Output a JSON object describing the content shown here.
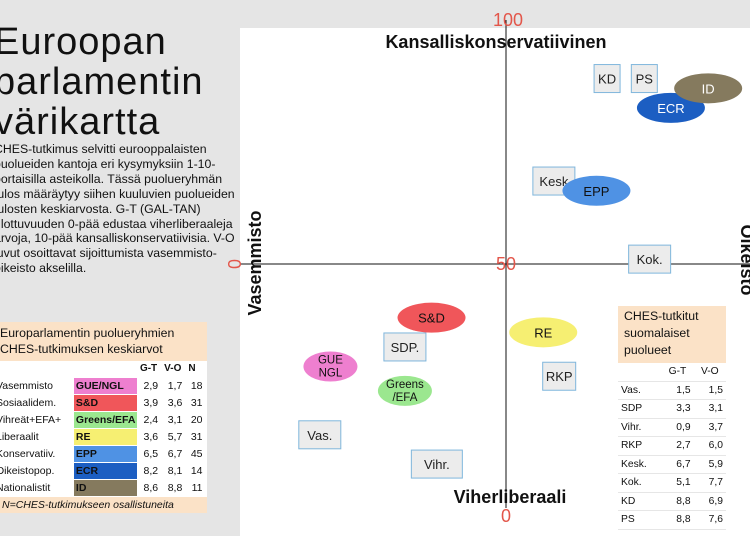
{
  "title": "Euroopan\nparlamentin\nvärikartta",
  "description": "CHES-tutkimus selvitti eurooppalaisten puolueiden kantoja eri kysymyksiin 1-10-portaisilla asteikolla. Tässä puolueryhmän tulos määräytyy siihen kuuluvien puolueiden tulosten keskiarvosta. G-T (GAL-TAN) ulottuvuuden 0-pää edustaa viherliberaaleja arvoja, 10-pää kansalliskonservatiivisia. V-O luvut osoittavat sijoittumista vasemmisto-oikeisto akselilla.",
  "eu_table": {
    "header": "Europarlamentin puolueryhmien CHES-tutkimuksen keskiarvot",
    "columns": [
      "",
      "",
      "G-T",
      "V-O",
      "N"
    ],
    "rows": [
      {
        "label": "Vasemmisto",
        "group": "GUE/NGL",
        "gt": "2,9",
        "vo": "1,7",
        "n": "18",
        "color": "#ee7fcf"
      },
      {
        "label": "Sosiaalidem.",
        "group": "S&D",
        "gt": "3,9",
        "vo": "3,6",
        "n": "31",
        "color": "#f0565a"
      },
      {
        "label": "Vihreät+EFA+",
        "group": "Greens/EFA",
        "gt": "2,4",
        "vo": "3,1",
        "n": "20",
        "color": "#9be78f"
      },
      {
        "label": "Liberaalit",
        "group": "RE",
        "gt": "3,6",
        "vo": "5,7",
        "n": "31",
        "color": "#f6ef72"
      },
      {
        "label": "Konservatiiv.",
        "group": "EPP",
        "gt": "6,5",
        "vo": "6,7",
        "n": "45",
        "color": "#4f92e4"
      },
      {
        "label": "Oikeistopop.",
        "group": "ECR",
        "gt": "8,2",
        "vo": "8,1",
        "n": "14",
        "color": "#1c5ec2"
      },
      {
        "label": "Nationalistit",
        "group": "ID",
        "gt": "8,6",
        "vo": "8,8",
        "n": "11",
        "color": "#857a5e"
      }
    ],
    "footnote": "N=CHES-tutkimukseen osallistuneita"
  },
  "fi_table": {
    "header": "CHES-tutkitut suomalaiset puolueet",
    "columns": [
      "",
      "G-T",
      "V-O"
    ],
    "rows": [
      {
        "party": "Vas.",
        "gt": "1,5",
        "vo": "1,5"
      },
      {
        "party": "SDP",
        "gt": "3,3",
        "vo": "3,1"
      },
      {
        "party": "Vihr.",
        "gt": "0,9",
        "vo": "3,7"
      },
      {
        "party": "RKP",
        "gt": "2,7",
        "vo": "6,0"
      },
      {
        "party": "Kesk.",
        "gt": "6,7",
        "vo": "5,9"
      },
      {
        "party": "Kok.",
        "gt": "5,1",
        "vo": "7,7"
      },
      {
        "party": "KD",
        "gt": "8,8",
        "vo": "6,9"
      },
      {
        "party": "PS",
        "gt": "8,8",
        "vo": "7,6"
      }
    ]
  },
  "chart_data": {
    "type": "scatter",
    "axis_labels": {
      "top": "Kansalliskonservatiivinen",
      "bottom": "Viherliberaali",
      "left": "Vasemmisto",
      "right": "Oikeisto"
    },
    "tick_labels": {
      "top": "100",
      "center": "50",
      "bottom": "0",
      "left": "0"
    },
    "x_axis": "V-O",
    "y_axis": "G-T",
    "xlim": [
      0,
      10
    ],
    "ylim": [
      0,
      10
    ],
    "grid": false,
    "groups": [
      {
        "label": "GUE\nNGL",
        "x": 1.7,
        "y": 2.9,
        "color": "#ee7fcf",
        "text_color": "#111111"
      },
      {
        "label": "S&D",
        "x": 3.6,
        "y": 3.9,
        "color": "#f0565a",
        "text_color": "#111111"
      },
      {
        "label": "Greens\n/EFA",
        "x": 3.1,
        "y": 2.4,
        "color": "#9be78f",
        "text_color": "#111111"
      },
      {
        "label": "RE",
        "x": 5.7,
        "y": 3.6,
        "color": "#f6ef72",
        "text_color": "#111111"
      },
      {
        "label": "EPP",
        "x": 6.7,
        "y": 6.5,
        "color": "#4f92e4",
        "text_color": "#111111"
      },
      {
        "label": "ECR",
        "x": 8.1,
        "y": 8.2,
        "color": "#1c5ec2",
        "text_color": "#ffffff"
      },
      {
        "label": "ID",
        "x": 8.8,
        "y": 8.6,
        "color": "#857a5e",
        "text_color": "#ffffff"
      }
    ],
    "parties": [
      {
        "label": "Vas.",
        "x": 1.5,
        "y": 1.5
      },
      {
        "label": "SDP.",
        "x": 3.1,
        "y": 3.3
      },
      {
        "label": "Vihr.",
        "x": 3.7,
        "y": 0.9
      },
      {
        "label": "RKP",
        "x": 6.0,
        "y": 2.7
      },
      {
        "label": "Kesk",
        "x": 5.9,
        "y": 6.7
      },
      {
        "label": "Kok.",
        "x": 7.7,
        "y": 5.1
      },
      {
        "label": "KD",
        "x": 6.9,
        "y": 8.8
      },
      {
        "label": "PS",
        "x": 7.6,
        "y": 8.8
      }
    ]
  }
}
